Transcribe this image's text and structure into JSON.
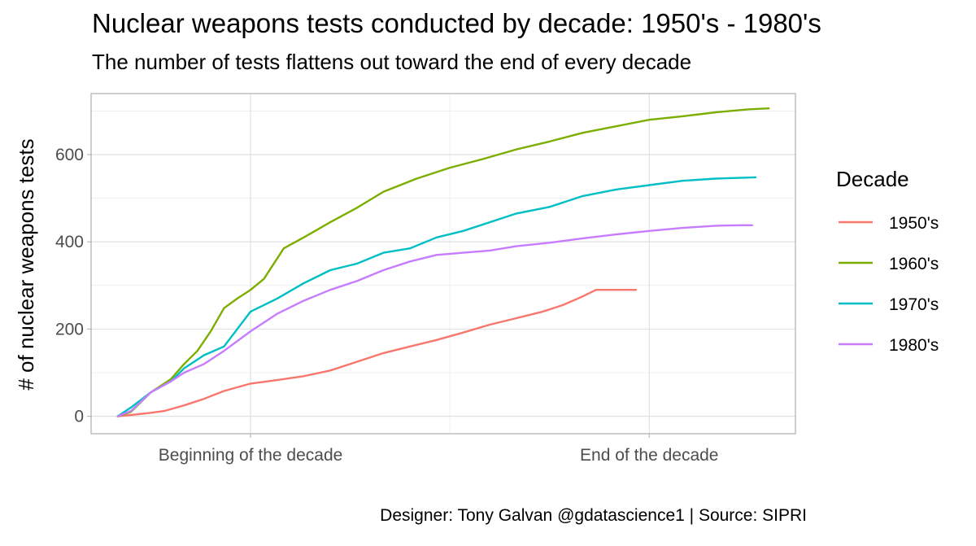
{
  "chart_data": {
    "type": "line",
    "title": "Nuclear weapons tests conducted by decade: 1950's - 1980's",
    "subtitle": "The number of tests flattens out toward the end of every decade",
    "caption": "Designer: Tony Galvan @gdatascience1  |  Source: SIPRI",
    "xlabel": "",
    "ylabel": "# of nuclear weapons tests",
    "x_tick_labels": [
      "Beginning of the decade",
      "End of the decade"
    ],
    "x_tick_positions": [
      0.2,
      0.8
    ],
    "xlim": [
      -0.04,
      1.02
    ],
    "ylim": [
      -40,
      740
    ],
    "y_ticks": [
      0,
      200,
      400,
      600
    ],
    "grid": true,
    "legend": {
      "title": "Decade",
      "placement": "right"
    },
    "series": [
      {
        "name": "1950's",
        "color": "#F8766D",
        "x": [
          0,
          0.02,
          0.05,
          0.07,
          0.1,
          0.13,
          0.16,
          0.2,
          0.24,
          0.28,
          0.32,
          0.36,
          0.4,
          0.44,
          0.48,
          0.52,
          0.56,
          0.6,
          0.64,
          0.67,
          0.7,
          0.72,
          0.75,
          0.78
        ],
        "values": [
          0,
          3,
          8,
          12,
          25,
          40,
          58,
          75,
          83,
          92,
          105,
          125,
          145,
          160,
          175,
          192,
          210,
          225,
          240,
          255,
          275,
          290,
          290,
          290
        ]
      },
      {
        "name": "1960's",
        "color": "#7CAE00",
        "x": [
          0,
          0.02,
          0.05,
          0.08,
          0.1,
          0.12,
          0.14,
          0.16,
          0.18,
          0.2,
          0.22,
          0.25,
          0.28,
          0.32,
          0.36,
          0.4,
          0.45,
          0.5,
          0.55,
          0.6,
          0.65,
          0.7,
          0.75,
          0.8,
          0.85,
          0.9,
          0.95,
          0.98
        ],
        "values": [
          0,
          10,
          55,
          85,
          120,
          150,
          195,
          248,
          270,
          290,
          315,
          385,
          410,
          445,
          478,
          515,
          545,
          570,
          590,
          612,
          630,
          650,
          665,
          680,
          688,
          697,
          704,
          706
        ]
      },
      {
        "name": "1970's",
        "color": "#00BFC4",
        "x": [
          0,
          0.02,
          0.05,
          0.08,
          0.1,
          0.13,
          0.16,
          0.2,
          0.24,
          0.28,
          0.32,
          0.36,
          0.4,
          0.44,
          0.48,
          0.52,
          0.56,
          0.6,
          0.65,
          0.7,
          0.75,
          0.8,
          0.85,
          0.9,
          0.94,
          0.96
        ],
        "values": [
          0,
          20,
          55,
          80,
          110,
          140,
          160,
          240,
          270,
          305,
          335,
          350,
          375,
          385,
          410,
          425,
          445,
          465,
          480,
          505,
          520,
          530,
          540,
          545,
          547,
          548
        ]
      },
      {
        "name": "1980's",
        "color": "#C77CFF",
        "x": [
          0,
          0.02,
          0.05,
          0.08,
          0.1,
          0.13,
          0.16,
          0.2,
          0.24,
          0.28,
          0.32,
          0.36,
          0.4,
          0.44,
          0.48,
          0.52,
          0.56,
          0.6,
          0.65,
          0.7,
          0.75,
          0.8,
          0.85,
          0.9,
          0.94,
          0.955
        ],
        "values": [
          0,
          12,
          55,
          80,
          100,
          120,
          150,
          195,
          235,
          265,
          290,
          310,
          335,
          355,
          370,
          375,
          380,
          390,
          398,
          408,
          417,
          425,
          432,
          437,
          438,
          438
        ]
      }
    ]
  }
}
